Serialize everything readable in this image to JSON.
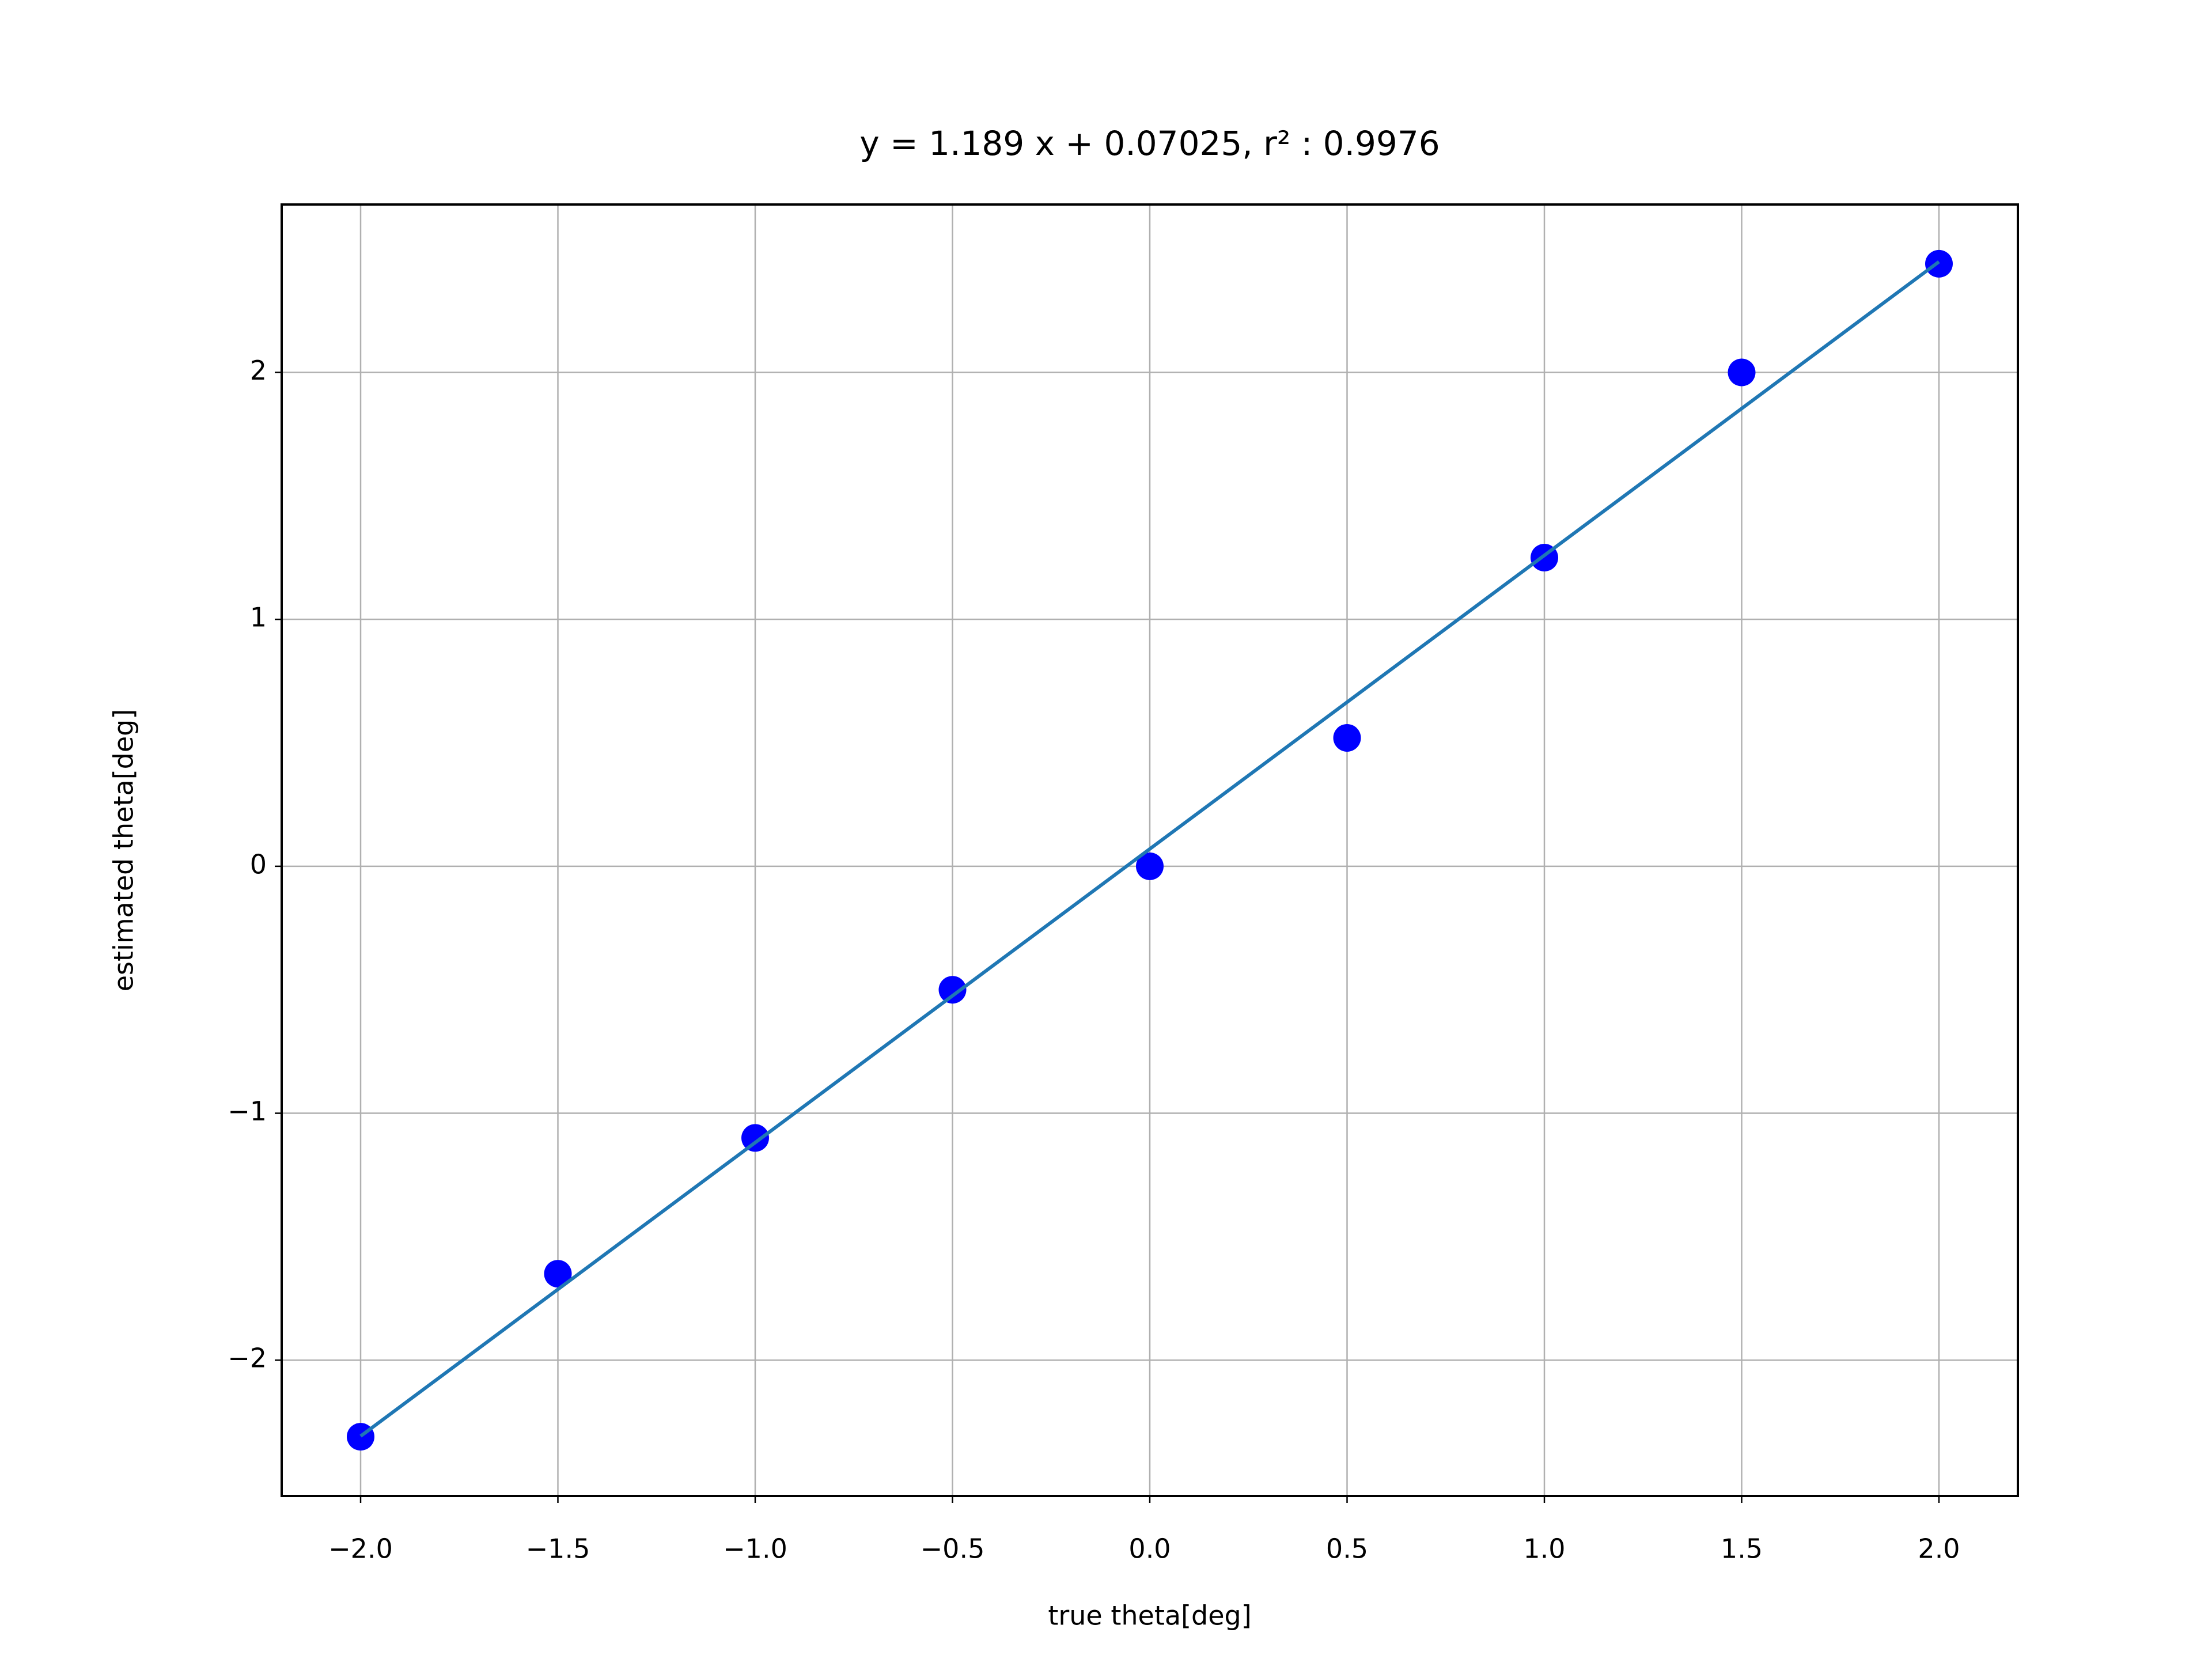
{
  "chart_data": {
    "type": "scatter",
    "title": "y = 1.189 x + 0.07025, r² : 0.9976",
    "x_label": "true theta[deg]",
    "y_label": "estimated theta[deg]",
    "series": [
      {
        "mode": "markers",
        "color": "#0000ff",
        "x": [
          -2.0,
          -1.5,
          -1.0,
          -0.5,
          0.0,
          0.5,
          1.0,
          1.5,
          2.0
        ],
        "values": [
          -2.31,
          -1.65,
          -1.1,
          -0.5,
          0.0,
          0.52,
          1.25,
          2.0,
          2.44
        ]
      },
      {
        "mode": "line",
        "color": "#1f77b4",
        "x": [
          -2.0,
          2.0
        ],
        "values": [
          -2.30775,
          2.44825
        ]
      }
    ],
    "xlim": [
      -2.2,
      2.2
    ],
    "ylim": [
      -2.55,
      2.68
    ],
    "xticks": [
      {
        "value": -2.0,
        "label": "−2.0"
      },
      {
        "value": -1.5,
        "label": "−1.5"
      },
      {
        "value": -1.0,
        "label": "−1.0"
      },
      {
        "value": -0.5,
        "label": "−0.5"
      },
      {
        "value": 0.0,
        "label": "0.0"
      },
      {
        "value": 0.5,
        "label": "0.5"
      },
      {
        "value": 1.0,
        "label": "1.0"
      },
      {
        "value": 1.5,
        "label": "1.5"
      },
      {
        "value": 2.0,
        "label": "2.0"
      }
    ],
    "yticks": [
      {
        "value": -2,
        "label": "−2"
      },
      {
        "value": -1,
        "label": "−1"
      },
      0,
      1,
      2
    ],
    "grid": true
  }
}
